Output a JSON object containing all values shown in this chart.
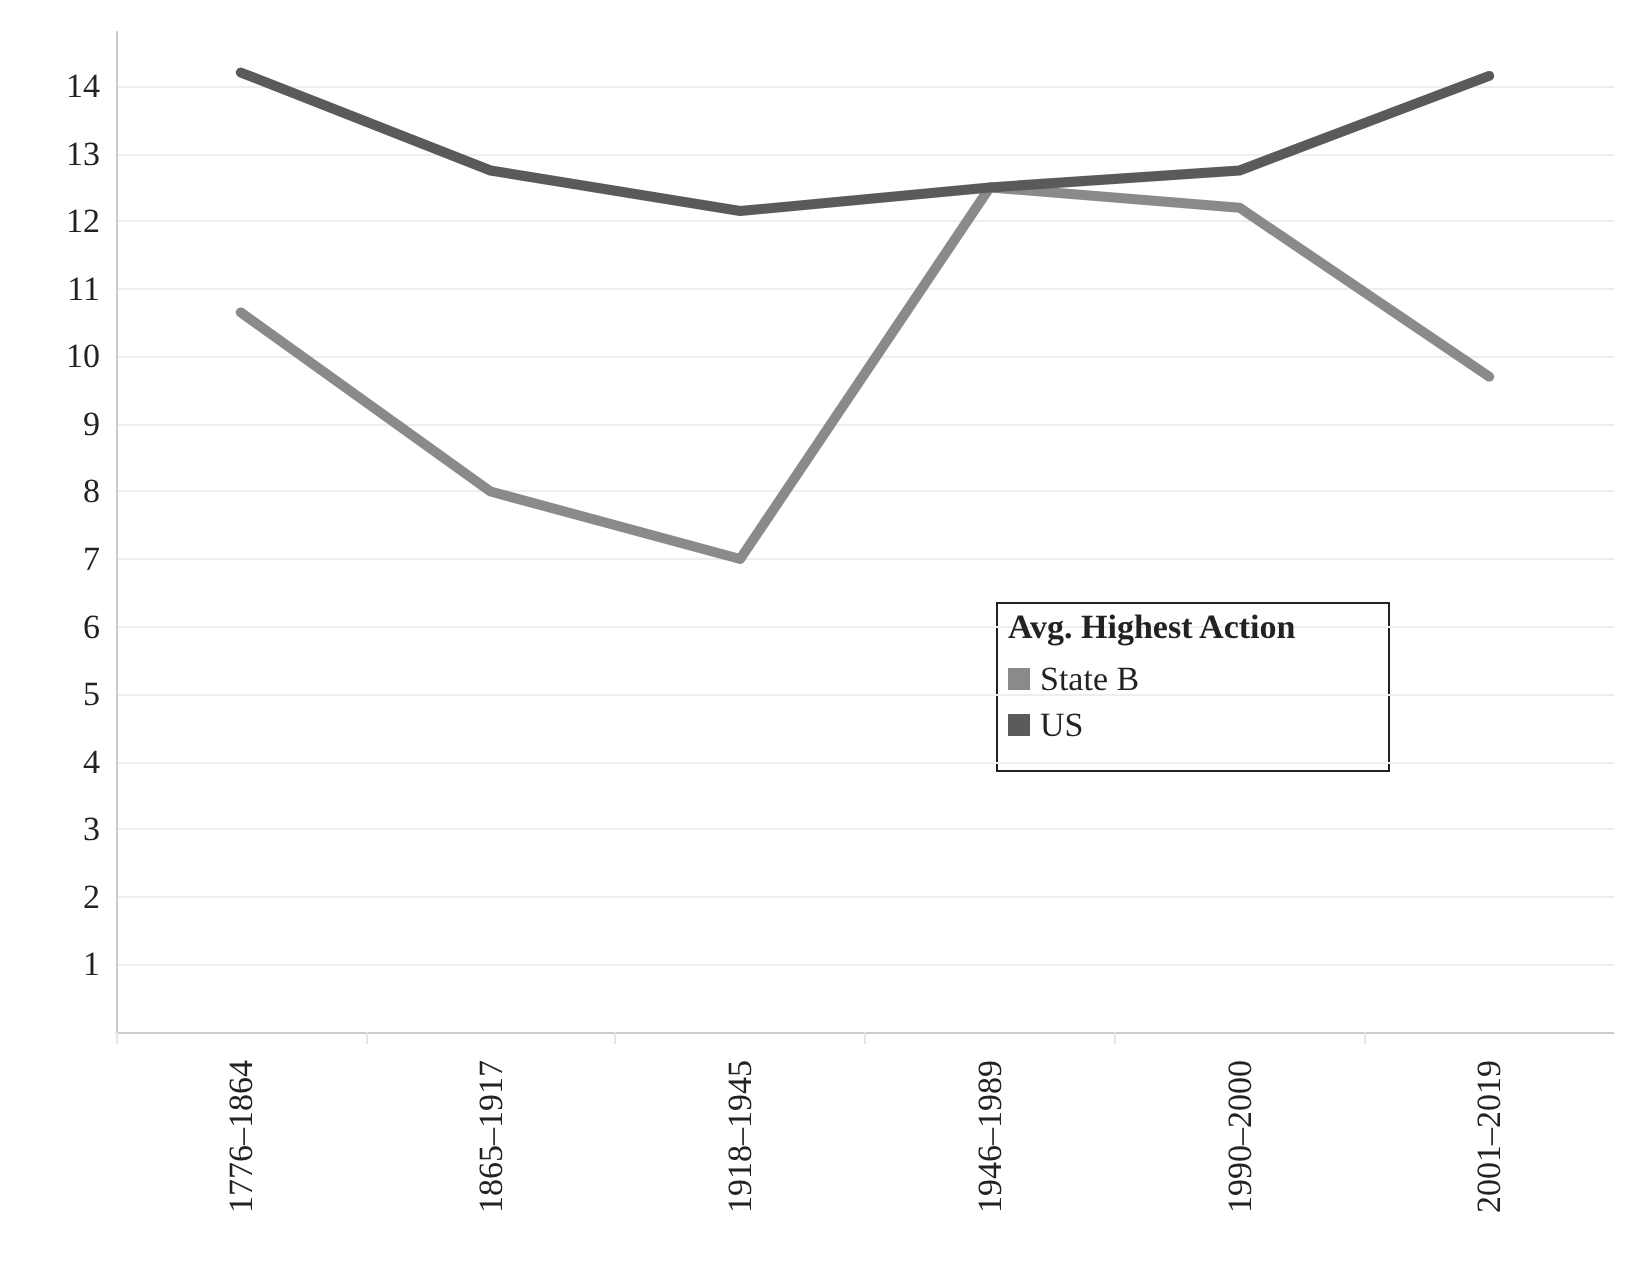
{
  "chart_data": {
    "type": "line",
    "legend_title": "Avg. Highest Action",
    "categories": [
      "1776–1864",
      "1865–1917",
      "1918–1945",
      "1946–1989",
      "1990–2000",
      "2001–2019"
    ],
    "series": [
      {
        "name": "State B",
        "color": "#8a8a8c",
        "values": [
          10.65,
          8.0,
          7.0,
          12.5,
          12.2,
          9.7
        ]
      },
      {
        "name": "US",
        "color": "#5a5a5c",
        "values": [
          14.2,
          12.75,
          12.15,
          12.5,
          12.75,
          14.15
        ]
      }
    ],
    "ylim": [
      0,
      14.8
    ],
    "yticks": [
      1,
      2,
      3,
      4,
      5,
      6,
      7,
      8,
      9,
      10,
      11,
      12,
      13,
      14
    ],
    "grid": "y",
    "legend": "center",
    "marker": "none",
    "line_style": "solid"
  }
}
